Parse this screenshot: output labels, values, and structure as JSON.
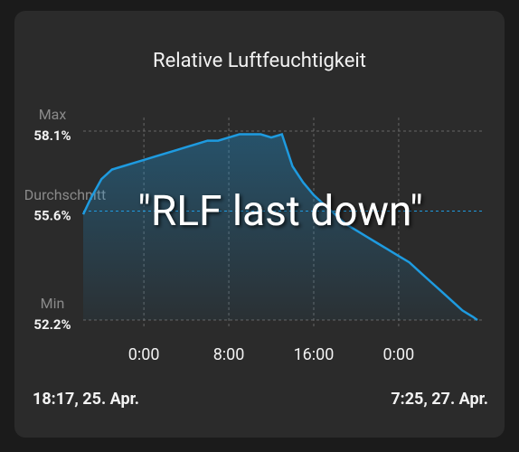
{
  "chart_data": {
    "type": "line",
    "title": "Relative Luftfeuchtigkeit",
    "x": [
      18.283,
      19,
      20,
      21,
      22,
      23,
      24,
      25,
      26,
      27,
      28,
      29,
      30,
      31,
      32,
      33,
      34,
      35,
      36,
      37,
      38,
      39,
      40,
      41,
      42,
      43,
      44,
      45,
      46,
      47,
      48,
      49,
      50,
      51,
      52,
      53,
      54,
      55,
      55.417
    ],
    "values": [
      55.5,
      56.0,
      56.6,
      56.9,
      57.0,
      57.1,
      57.2,
      57.3,
      57.4,
      57.5,
      57.6,
      57.7,
      57.8,
      57.8,
      57.9,
      58.0,
      58.0,
      58.0,
      57.9,
      58.0,
      57.0,
      56.5,
      56.1,
      55.8,
      55.5,
      55.2,
      55.0,
      54.8,
      54.6,
      54.4,
      54.2,
      54.0,
      53.7,
      53.4,
      53.1,
      52.8,
      52.5,
      52.3,
      52.2
    ],
    "color": "#1e9be0",
    "xlim": [
      18.283,
      55.417
    ],
    "xticks": [
      {
        "value": 24,
        "label": "0:00"
      },
      {
        "value": 32,
        "label": "8:00"
      },
      {
        "value": 40,
        "label": "16:00"
      },
      {
        "value": 48,
        "label": "0:00"
      }
    ],
    "ylim": [
      52.2,
      58.1
    ],
    "yticks": [
      {
        "value": 58.1,
        "label": "58.1%",
        "name": "Max"
      },
      {
        "value": 55.6,
        "label": "55.6%",
        "name": "Durchschnitt"
      },
      {
        "value": 52.2,
        "label": "52.2%",
        "name": "Min"
      }
    ],
    "range_start": "18:17,  25. Apr.",
    "range_end": "7:25,  27. Apr.",
    "overlay_text": "\"RLF last down\""
  }
}
